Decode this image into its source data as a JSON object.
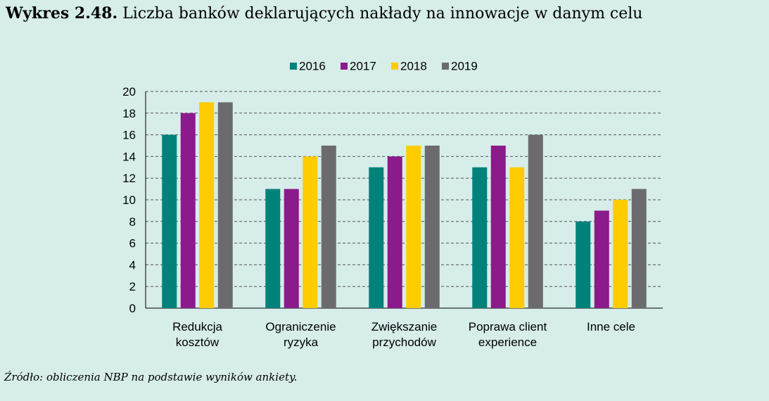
{
  "header": {
    "figure_number": "Wykres 2.48.",
    "title_text": "Liczba banków deklarujących nakłady na innowacje w danym celu"
  },
  "footer": {
    "source": "Źródło: obliczenia NBP na podstawie wyników ankiety."
  },
  "chart_data": {
    "type": "bar",
    "title": "",
    "xlabel": "",
    "ylabel": "",
    "ylim": [
      0,
      20
    ],
    "yticks": [
      0,
      2,
      4,
      6,
      8,
      10,
      12,
      14,
      16,
      18,
      20
    ],
    "grid": true,
    "legend_position": "top",
    "categories": [
      [
        "Redukcja",
        "kosztów"
      ],
      [
        "Ograniczenie",
        "ryzyka"
      ],
      [
        "Zwiększanie",
        "przychodów"
      ],
      [
        "Poprawa client",
        "experience"
      ],
      [
        "Inne cele"
      ]
    ],
    "series": [
      {
        "name": "2016",
        "color": "#00827a",
        "values": [
          16,
          11,
          13,
          13,
          8
        ]
      },
      {
        "name": "2017",
        "color": "#8b1a8b",
        "values": [
          18,
          11,
          14,
          15,
          9
        ]
      },
      {
        "name": "2018",
        "color": "#ffcc00",
        "values": [
          19,
          14,
          15,
          13,
          10
        ]
      },
      {
        "name": "2019",
        "color": "#6b6b6f",
        "values": [
          19,
          15,
          15,
          16,
          11
        ]
      }
    ]
  }
}
